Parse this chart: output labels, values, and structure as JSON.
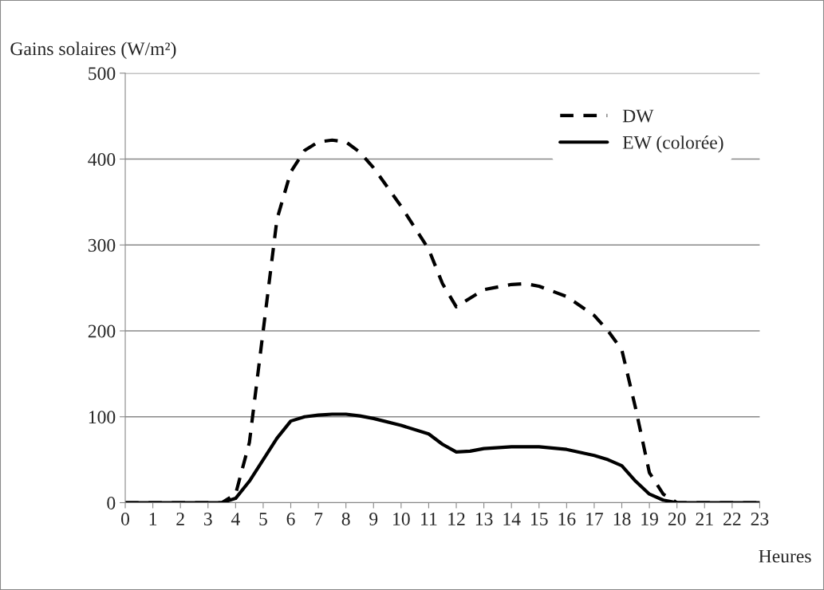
{
  "chart_data": {
    "type": "line",
    "ylabel": "Gains solaires (W/m²)",
    "xlabel": "Heures",
    "x": [
      0,
      1,
      2,
      3,
      3.5,
      4,
      4.5,
      5,
      5.5,
      6,
      6.5,
      7,
      7.5,
      8,
      8.5,
      9,
      10,
      11,
      11.5,
      12,
      12.5,
      13,
      14,
      14.5,
      15,
      16,
      17,
      17.5,
      18,
      18.5,
      19,
      19.5,
      20,
      21,
      22,
      23
    ],
    "series": [
      {
        "name": "DW",
        "color": "#000000",
        "line_style": "dashed",
        "values": [
          0,
          0,
          0,
          0,
          0,
          10,
          70,
          200,
          330,
          385,
          410,
          420,
          422,
          420,
          408,
          390,
          345,
          295,
          255,
          228,
          238,
          248,
          254,
          255,
          252,
          240,
          218,
          200,
          178,
          110,
          35,
          10,
          0,
          0,
          0,
          0
        ]
      },
      {
        "name": "EW (colorée)",
        "color": "#000000",
        "line_style": "solid",
        "values": [
          0,
          0,
          0,
          0,
          0,
          5,
          25,
          50,
          75,
          95,
          100,
          102,
          103,
          103,
          101,
          98,
          90,
          80,
          68,
          59,
          60,
          63,
          65,
          65,
          65,
          62,
          55,
          50,
          43,
          25,
          10,
          3,
          0,
          0,
          0,
          0
        ]
      }
    ],
    "xlim": [
      0,
      23
    ],
    "xticks": [
      0,
      1,
      2,
      3,
      4,
      5,
      6,
      7,
      8,
      9,
      10,
      11,
      12,
      13,
      14,
      15,
      16,
      17,
      18,
      19,
      20,
      21,
      22,
      23
    ],
    "ylim": [
      0,
      500
    ],
    "yticks": [
      0,
      100,
      200,
      300,
      400,
      500
    ],
    "grid": "y",
    "legend": "top right",
    "marker": "none"
  }
}
